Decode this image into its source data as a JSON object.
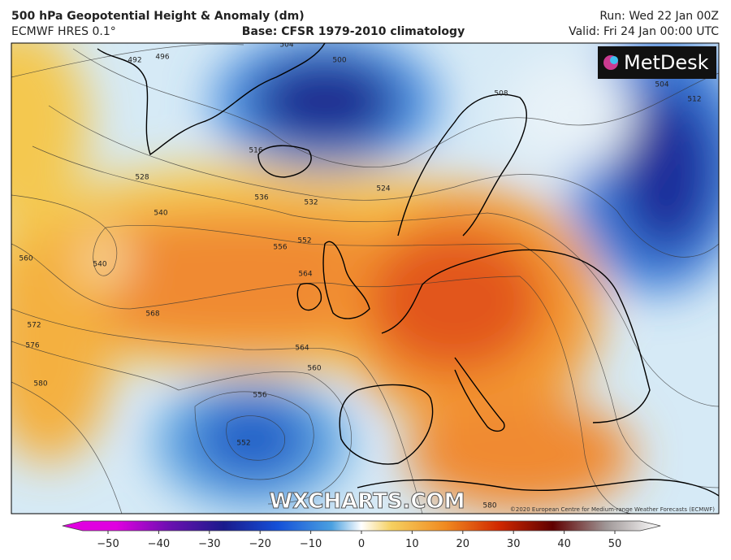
{
  "header": {
    "title": "500 hPa Geopotential Height & Anomaly (dm)",
    "model": "ECMWF HRES 0.1°",
    "base": "Base: CFSR 1979-2010 climatology",
    "run": "Run: Wed 22 Jan 00Z",
    "valid": "Valid: Fri 24 Jan 00:00 UTC"
  },
  "logo": "MetDesk",
  "watermark": "WXCHARTS.COM",
  "copyright": "©2020 European Centre for Medium-range Weather Forecasts (ECMWF)",
  "contour_labels": [
    492,
    496,
    500,
    504,
    508,
    512,
    516,
    524,
    528,
    532,
    536,
    540,
    540,
    552,
    556,
    560,
    564,
    568,
    572,
    576,
    580,
    564,
    560,
    556,
    552,
    580,
    504
  ],
  "colorbar": {
    "lim": [
      -50,
      50
    ],
    "ticks": [
      {
        "value": -50,
        "label": "−50"
      },
      {
        "value": -40,
        "label": "−40"
      },
      {
        "value": -30,
        "label": "−30"
      },
      {
        "value": -20,
        "label": "−20"
      },
      {
        "value": -10,
        "label": "−10"
      },
      0,
      10,
      20,
      30,
      40,
      50
    ]
  }
}
